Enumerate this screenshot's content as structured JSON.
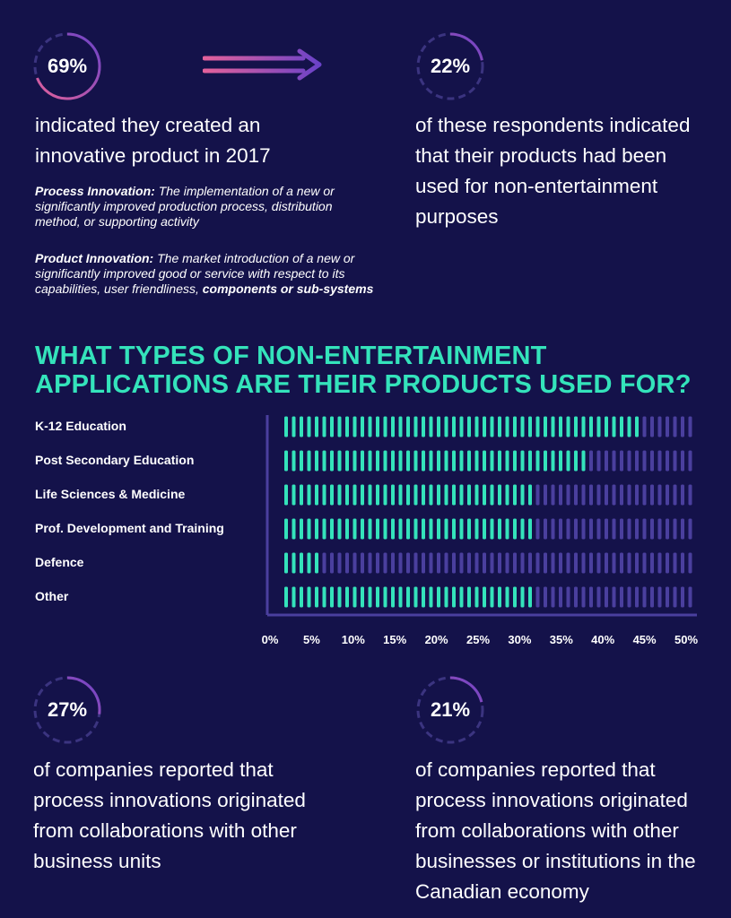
{
  "stats": {
    "top_left": {
      "value": "69%",
      "fill": 0.69,
      "text": "indicated they created an innovative product in 2017"
    },
    "top_right": {
      "value": "22%",
      "fill": 0.22,
      "text": "of these respondents indicated that their products had been used for non-entertainment purposes"
    },
    "bottom_left": {
      "value": "27%",
      "fill": 0.27,
      "text": "of companies reported that process innovations originated from collaborations with other business units"
    },
    "bottom_right": {
      "value": "21%",
      "fill": 0.21,
      "text": "of companies reported that process innovations originated from collaborations with other businesses or institutions in the Canadian economy"
    }
  },
  "definitions": {
    "process_term": "Process Innovation:",
    "process_text": "The implementation of a new or significantly improved production process, distribution method, or supporting activity",
    "product_term": "Product Innovation:",
    "product_text_1": "The market introduction of a new or significantly improved good or service with respect to its capabilities, user friendliness,",
    "product_text_2": "components or sub-systems"
  },
  "heading": {
    "line1": "WHAT TYPES OF NON-ENTERTAINMENT",
    "line2": "APPLICATIONS ARE THEIR PRODUCTS USED FOR?"
  },
  "colors": {
    "background": "#14124a",
    "accent": "#34e3bb",
    "bar_empty": "#4a3f9e",
    "ring_gradient_start": "#e3619b",
    "ring_gradient_end": "#6a42c8",
    "ring_track": "#3b3480"
  },
  "chart_data": {
    "type": "bar",
    "orientation": "horizontal",
    "title": "WHAT TYPES OF NON-ENTERTAINMENT APPLICATIONS ARE THEIR PRODUCTS USED FOR?",
    "categories": [
      "K-12 Education",
      "Post Secondary Education",
      "Life Sciences & Medicine",
      "Prof. Development and Training",
      "Defence",
      "Other"
    ],
    "values": [
      44.5,
      38,
      31,
      31,
      5.5,
      31
    ],
    "xlim": [
      0,
      50
    ],
    "xticks": [
      "0%",
      "5%",
      "10%",
      "15%",
      "20%",
      "25%",
      "30%",
      "35%",
      "40%",
      "45%",
      "50%"
    ],
    "xtick_values": [
      0,
      5,
      10,
      15,
      20,
      25,
      30,
      35,
      40,
      45,
      50
    ],
    "grid": false,
    "legend": "none"
  }
}
